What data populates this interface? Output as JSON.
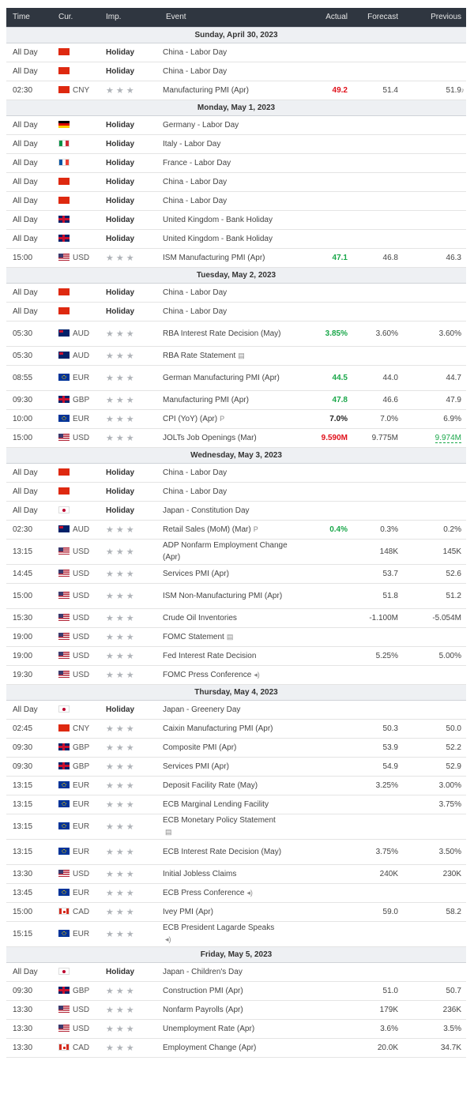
{
  "headers": {
    "time": "Time",
    "cur": "Cur.",
    "imp": "Imp.",
    "event": "Event",
    "actual": "Actual",
    "forecast": "Forecast",
    "previous": "Previous"
  },
  "colors": {
    "positive": "#1aa74a",
    "negative": "#e0101a",
    "neutral": "#222222",
    "header_bg": "#2f3640"
  },
  "rows": [
    {
      "type": "day",
      "label": "Sunday, April 30, 2023"
    },
    {
      "time": "All Day",
      "flag": "cn",
      "cur": "",
      "holiday": "Holiday",
      "event": "China - Labor Day"
    },
    {
      "time": "All Day",
      "flag": "cn",
      "cur": "",
      "holiday": "Holiday",
      "event": "China - Labor Day"
    },
    {
      "time": "02:30",
      "flag": "cn",
      "cur": "CNY",
      "stars": "★★★",
      "event": "Manufacturing PMI (Apr)",
      "actual": "49.2",
      "actual_class": "negative",
      "forecast": "51.4",
      "previous": "51.9",
      "alert": "bell-icon"
    },
    {
      "type": "day",
      "label": "Monday, May 1, 2023"
    },
    {
      "time": "All Day",
      "flag": "de",
      "cur": "",
      "holiday": "Holiday",
      "event": "Germany - Labor Day"
    },
    {
      "time": "All Day",
      "flag": "it",
      "cur": "",
      "holiday": "Holiday",
      "event": "Italy - Labor Day"
    },
    {
      "time": "All Day",
      "flag": "fr",
      "cur": "",
      "holiday": "Holiday",
      "event": "France - Labor Day"
    },
    {
      "time": "All Day",
      "flag": "cn",
      "cur": "",
      "holiday": "Holiday",
      "event": "China - Labor Day"
    },
    {
      "time": "All Day",
      "flag": "cn",
      "cur": "",
      "holiday": "Holiday",
      "event": "China - Labor Day"
    },
    {
      "time": "All Day",
      "flag": "gb",
      "cur": "",
      "holiday": "Holiday",
      "event": "United Kingdom - Bank Holiday"
    },
    {
      "time": "All Day",
      "flag": "gb",
      "cur": "",
      "holiday": "Holiday",
      "event": "United Kingdom - Bank Holiday"
    },
    {
      "time": "15:00",
      "flag": "us",
      "cur": "USD",
      "stars": "★★★",
      "event": "ISM Manufacturing PMI (Apr)",
      "actual": "47.1",
      "actual_class": "positive",
      "forecast": "46.8",
      "previous": "46.3"
    },
    {
      "type": "day",
      "label": "Tuesday, May 2, 2023"
    },
    {
      "time": "All Day",
      "flag": "cn",
      "cur": "",
      "holiday": "Holiday",
      "event": "China - Labor Day"
    },
    {
      "time": "All Day",
      "flag": "cn",
      "cur": "",
      "holiday": "Holiday",
      "event": "China - Labor Day"
    },
    {
      "time": "05:30",
      "flag": "au",
      "cur": "AUD",
      "stars": "★★★",
      "event": "RBA Interest Rate Decision (May)",
      "actual": "3.85%",
      "actual_class": "positive",
      "forecast": "3.60%",
      "previous": "3.60%",
      "tall": true
    },
    {
      "time": "05:30",
      "flag": "au",
      "cur": "AUD",
      "stars": "★★★",
      "event": "RBA Rate Statement",
      "icon": "document-icon"
    },
    {
      "time": "08:55",
      "flag": "eu",
      "cur": "EUR",
      "stars": "★★★",
      "event": "German Manufacturing PMI (Apr)",
      "actual": "44.5",
      "actual_class": "positive",
      "forecast": "44.0",
      "previous": "44.7",
      "tall": true
    },
    {
      "time": "09:30",
      "flag": "gb",
      "cur": "GBP",
      "stars": "★★★",
      "event": "Manufacturing PMI (Apr)",
      "actual": "47.8",
      "actual_class": "positive",
      "forecast": "46.6",
      "previous": "47.9"
    },
    {
      "time": "10:00",
      "flag": "eu",
      "cur": "EUR",
      "stars": "★★★",
      "event": "CPI (YoY) (Apr)",
      "icon": "preliminary-icon",
      "actual": "7.0%",
      "actual_class": "neutral",
      "forecast": "7.0%",
      "previous": "6.9%"
    },
    {
      "time": "15:00",
      "flag": "us",
      "cur": "USD",
      "stars": "★★★",
      "event": "JOLTs Job Openings (Mar)",
      "actual": "9.590M",
      "actual_class": "negative",
      "forecast": "9.775M",
      "previous": "9.974M",
      "previous_class": "positive"
    },
    {
      "type": "day",
      "label": "Wednesday, May 3, 2023"
    },
    {
      "time": "All Day",
      "flag": "cn",
      "cur": "",
      "holiday": "Holiday",
      "event": "China - Labor Day"
    },
    {
      "time": "All Day",
      "flag": "cn",
      "cur": "",
      "holiday": "Holiday",
      "event": "China - Labor Day"
    },
    {
      "time": "All Day",
      "flag": "jp",
      "cur": "",
      "holiday": "Holiday",
      "event": "Japan - Constitution Day"
    },
    {
      "time": "02:30",
      "flag": "au",
      "cur": "AUD",
      "stars": "★★★",
      "event": "Retail Sales (MoM) (Mar)",
      "icon": "preliminary-icon",
      "actual": "0.4%",
      "actual_class": "positive",
      "forecast": "0.3%",
      "previous": "0.2%"
    },
    {
      "time": "13:15",
      "flag": "us",
      "cur": "USD",
      "stars": "★★★",
      "event": "ADP Nonfarm Employment Change (Apr)",
      "forecast": "148K",
      "previous": "145K",
      "tall": true
    },
    {
      "time": "14:45",
      "flag": "us",
      "cur": "USD",
      "stars": "★★★",
      "event": "Services PMI (Apr)",
      "forecast": "53.7",
      "previous": "52.6"
    },
    {
      "time": "15:00",
      "flag": "us",
      "cur": "USD",
      "stars": "★★★",
      "event": "ISM Non-Manufacturing PMI (Apr)",
      "forecast": "51.8",
      "previous": "51.2",
      "tall": true
    },
    {
      "time": "15:30",
      "flag": "us",
      "cur": "USD",
      "stars": "★★★",
      "event": "Crude Oil Inventories",
      "forecast": "-1.100M",
      "previous": "-5.054M"
    },
    {
      "time": "19:00",
      "flag": "us",
      "cur": "USD",
      "stars": "★★★",
      "event": "FOMC Statement",
      "icon": "document-icon"
    },
    {
      "time": "19:00",
      "flag": "us",
      "cur": "USD",
      "stars": "★★★",
      "event": "Fed Interest Rate Decision",
      "forecast": "5.25%",
      "previous": "5.00%"
    },
    {
      "time": "19:30",
      "flag": "us",
      "cur": "USD",
      "stars": "★★★",
      "event": "FOMC Press Conference",
      "icon": "speaker-icon"
    },
    {
      "type": "day",
      "label": "Thursday, May 4, 2023"
    },
    {
      "time": "All Day",
      "flag": "jp",
      "cur": "",
      "holiday": "Holiday",
      "event": "Japan - Greenery Day"
    },
    {
      "time": "02:45",
      "flag": "cn",
      "cur": "CNY",
      "stars": "★★★",
      "event": "Caixin Manufacturing PMI (Apr)",
      "forecast": "50.3",
      "previous": "50.0"
    },
    {
      "time": "09:30",
      "flag": "gb",
      "cur": "GBP",
      "stars": "★★★",
      "event": "Composite PMI (Apr)",
      "forecast": "53.9",
      "previous": "52.2"
    },
    {
      "time": "09:30",
      "flag": "gb",
      "cur": "GBP",
      "stars": "★★★",
      "event": "Services PMI (Apr)",
      "forecast": "54.9",
      "previous": "52.9"
    },
    {
      "time": "13:15",
      "flag": "eu",
      "cur": "EUR",
      "stars": "★★★",
      "event": "Deposit Facility Rate (May)",
      "forecast": "3.25%",
      "previous": "3.00%"
    },
    {
      "time": "13:15",
      "flag": "eu",
      "cur": "EUR",
      "stars": "★★★",
      "event": "ECB Marginal Lending Facility",
      "previous": "3.75%"
    },
    {
      "time": "13:15",
      "flag": "eu",
      "cur": "EUR",
      "stars": "★★★",
      "event": "ECB Monetary Policy Statement",
      "icon": "document-icon",
      "icon_wrap": true,
      "tall": true
    },
    {
      "time": "13:15",
      "flag": "eu",
      "cur": "EUR",
      "stars": "★★★",
      "event": "ECB Interest Rate Decision (May)",
      "forecast": "3.75%",
      "previous": "3.50%",
      "tall": true
    },
    {
      "time": "13:30",
      "flag": "us",
      "cur": "USD",
      "stars": "★★★",
      "event": "Initial Jobless Claims",
      "forecast": "240K",
      "previous": "230K"
    },
    {
      "time": "13:45",
      "flag": "eu",
      "cur": "EUR",
      "stars": "★★★",
      "event": "ECB Press Conference",
      "icon": "speaker-icon"
    },
    {
      "time": "15:00",
      "flag": "ca",
      "cur": "CAD",
      "stars": "★★★",
      "event": "Ivey PMI (Apr)",
      "forecast": "59.0",
      "previous": "58.2"
    },
    {
      "time": "15:15",
      "flag": "eu",
      "cur": "EUR",
      "stars": "★★★",
      "event": "ECB President Lagarde Speaks",
      "icon": "speaker-icon",
      "icon_wrap": true,
      "tall": true
    },
    {
      "type": "day",
      "label": "Friday, May 5, 2023"
    },
    {
      "time": "All Day",
      "flag": "jp",
      "cur": "",
      "holiday": "Holiday",
      "event": "Japan - Children's Day"
    },
    {
      "time": "09:30",
      "flag": "gb",
      "cur": "GBP",
      "stars": "★★★",
      "event": "Construction PMI (Apr)",
      "forecast": "51.0",
      "previous": "50.7"
    },
    {
      "time": "13:30",
      "flag": "us",
      "cur": "USD",
      "stars": "★★★",
      "event": "Nonfarm Payrolls (Apr)",
      "forecast": "179K",
      "previous": "236K"
    },
    {
      "time": "13:30",
      "flag": "us",
      "cur": "USD",
      "stars": "★★★",
      "event": "Unemployment Rate (Apr)",
      "forecast": "3.6%",
      "previous": "3.5%"
    },
    {
      "time": "13:30",
      "flag": "ca",
      "cur": "CAD",
      "stars": "★★★",
      "event": "Employment Change (Apr)",
      "forecast": "20.0K",
      "previous": "34.7K"
    }
  ]
}
